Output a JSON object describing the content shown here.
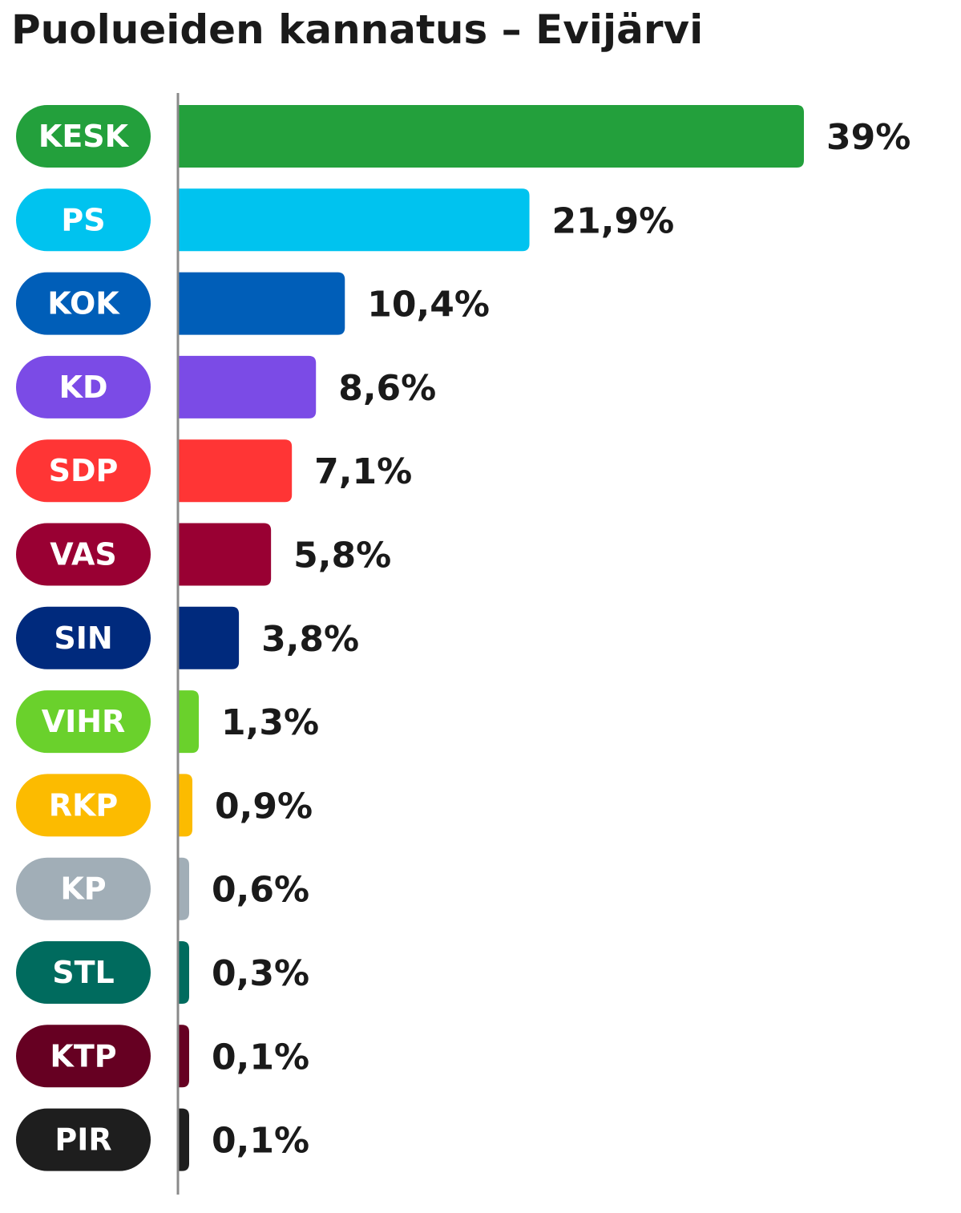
{
  "chart_data": {
    "type": "bar",
    "orientation": "horizontal",
    "title": "Puolueiden kannatus – Evijärvi",
    "categories": [
      "KESK",
      "PS",
      "KOK",
      "KD",
      "SDP",
      "VAS",
      "SIN",
      "VIHR",
      "RKP",
      "KP",
      "STL",
      "KTP",
      "PIR"
    ],
    "values": [
      39,
      21.9,
      10.4,
      8.6,
      7.1,
      5.8,
      3.8,
      1.3,
      0.9,
      0.6,
      0.3,
      0.1,
      0.1
    ],
    "value_labels": [
      "39%",
      "21,9%",
      "10,4%",
      "8,6%",
      "7,1%",
      "5,8%",
      "3,8%",
      "1,3%",
      "0,9%",
      "0,6%",
      "0,3%",
      "0,1%",
      "0,1%"
    ],
    "colors": [
      "#23a03c",
      "#00c3ef",
      "#005eb8",
      "#7b4be6",
      "#ff3535",
      "#990033",
      "#002a7d",
      "#6ad12c",
      "#fcbb00",
      "#a1aeb7",
      "#006b5e",
      "#660022",
      "#1e1e1e"
    ],
    "xlim": [
      0,
      39
    ],
    "grid": false,
    "legend": "none"
  }
}
